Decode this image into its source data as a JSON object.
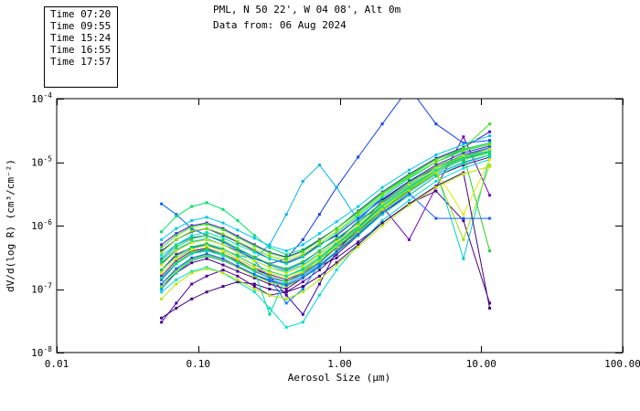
{
  "title": {
    "line1": "PML, N 50 22', W 04 08', Alt 0m",
    "line2": "Data from: 06 Aug 2024"
  },
  "legend": {
    "entries": [
      {
        "label": "Time 07:20",
        "color": "#6A00B8"
      },
      {
        "label": "Time 09:55",
        "color": "#0060FF"
      },
      {
        "label": "Time 15:24",
        "color": "#00DC50"
      },
      {
        "label": "Time 16:55",
        "color": "#6EE000"
      },
      {
        "label": "Time 17:57",
        "color": "#D2E600"
      }
    ]
  },
  "axes": {
    "x": {
      "title": "Aerosol Size (μm)",
      "scale": "log",
      "tick_labels": [
        "0.01",
        "0.10",
        "1.00",
        "10.00",
        "100.00"
      ],
      "tick_values": [
        0.01,
        0.1,
        1,
        10,
        100
      ]
    },
    "y": {
      "title": "dV/d(log R) (cm³/cm⁻²)",
      "scale": "log",
      "tick_base": "10",
      "tick_exponents": [
        "-4",
        "-5",
        "-6",
        "-7",
        "-8"
      ],
      "tick_values": [
        0.0001,
        1e-05,
        1e-06,
        1e-07,
        1e-08
      ]
    }
  },
  "chart_data": {
    "type": "line",
    "title": "PML, N 50 22', W 04 08', Alt 0m",
    "subtitle": "Data from: 06 Aug 2024",
    "xlabel": "Aerosol Size (μm)",
    "ylabel": "dV/d(log R) (cm³/cm⁻²)",
    "xscale": "log",
    "yscale": "log",
    "xlim": [
      0.01,
      100
    ],
    "ylim": [
      1e-08,
      0.0001
    ],
    "grid": false,
    "marker": "square",
    "legend_position": "top-left",
    "legend_times": [
      "07:20",
      "09:55",
      "15:24",
      "16:55",
      "17:57"
    ],
    "x": [
      0.055,
      0.07,
      0.09,
      0.115,
      0.15,
      0.19,
      0.25,
      0.32,
      0.42,
      0.55,
      0.72,
      0.95,
      1.35,
      2.0,
      3.1,
      4.8,
      7.5,
      11.5
    ],
    "series": [
      {
        "name": "line-01",
        "color": "#4B0082",
        "values": [
          1.1e-07,
          1.8e-07,
          2.6e-07,
          3e-07,
          2.4e-07,
          1.9e-07,
          1.5e-07,
          1.2e-07,
          1e-07,
          1.5e-07,
          2.3e-07,
          3.1e-07,
          5.5e-07,
          1.1e-06,
          2.2e-06,
          3.5e-06,
          1.2e-06,
          6e-08
        ]
      },
      {
        "name": "line-02",
        "color": "#52009E",
        "values": [
          3e-08,
          6e-08,
          1.2e-07,
          1.6e-07,
          2e-07,
          1.6e-07,
          1.1e-07,
          8e-08,
          9e-08,
          1.3e-07,
          2e-07,
          3.5e-07,
          7e-07,
          1.6e-06,
          3e-06,
          6e-06,
          9e-06,
          1.2e-05
        ]
      },
      {
        "name": "line-03",
        "color": "#3C00B4",
        "values": [
          2e-07,
          3.5e-07,
          4.5e-07,
          5e-07,
          4e-07,
          3e-07,
          2.2e-07,
          1.6e-07,
          8e-08,
          4e-08,
          1.2e-07,
          4e-07,
          9e-07,
          2.5e-06,
          5e-06,
          8e-06,
          1.3e-05,
          1.6e-05
        ]
      },
      {
        "name": "line-04",
        "color": "#6E00C8",
        "values": [
          1.6e-07,
          2.8e-07,
          4e-07,
          4.4e-07,
          3.6e-07,
          2.8e-07,
          2e-07,
          1.7e-07,
          1.4e-07,
          1.8e-07,
          3e-07,
          5e-07,
          1e-06,
          2e-06,
          6e-07,
          4e-06,
          2.5e-05,
          3e-06
        ]
      },
      {
        "name": "line-05",
        "color": "#2B16C8",
        "values": [
          4e-07,
          6e-07,
          8e-07,
          9e-07,
          7e-07,
          5.5e-07,
          4e-07,
          3e-07,
          2.6e-07,
          3.3e-07,
          5e-07,
          7e-07,
          1.3e-06,
          2.6e-06,
          5e-06,
          9e-06,
          1.4e-05,
          1.8e-05
        ]
      },
      {
        "name": "line-06",
        "color": "#1240EE",
        "values": [
          2.5e-07,
          4e-07,
          5.5e-07,
          6e-07,
          5e-07,
          4e-07,
          3e-07,
          2.5e-07,
          3e-07,
          6e-07,
          1.5e-06,
          4e-06,
          1.2e-05,
          4e-05,
          0.00015,
          4e-05,
          2e-05,
          2.2e-05
        ]
      },
      {
        "name": "line-07",
        "color": "#0055FA",
        "values": [
          1.4e-07,
          2.5e-07,
          3.6e-07,
          4.2e-07,
          3.4e-07,
          2.6e-07,
          1.9e-07,
          1.5e-07,
          1.3e-07,
          1.7e-07,
          2.6e-07,
          4.5e-07,
          8e-07,
          1.8e-06,
          3.6e-06,
          7e-06,
          1.1e-05,
          1.5e-05
        ]
      },
      {
        "name": "line-08",
        "color": "#0066FF",
        "values": [
          2.2e-06,
          1.5e-06,
          9e-07,
          7e-07,
          5.5e-07,
          4.2e-07,
          3.2e-07,
          2.4e-07,
          2e-07,
          2.6e-07,
          4e-07,
          6e-07,
          1.1e-06,
          2.3e-06,
          4.5e-06,
          8e-06,
          1.3e-05,
          1.7e-05
        ]
      },
      {
        "name": "line-09",
        "color": "#0080FF",
        "values": [
          3e-07,
          5e-07,
          6.5e-07,
          7e-07,
          5.6e-07,
          4.2e-07,
          2.8e-07,
          1.5e-07,
          6e-08,
          1e-07,
          2.5e-07,
          5.5e-07,
          1.2e-06,
          2.8e-06,
          5.5e-06,
          1e-05,
          1.6e-05,
          2e-05
        ]
      },
      {
        "name": "line-10",
        "color": "#009CF0",
        "values": [
          1e-07,
          1.8e-07,
          2.8e-07,
          3.3e-07,
          2.8e-07,
          2.2e-07,
          1.7e-07,
          1.4e-07,
          1.2e-07,
          1.6e-07,
          2.4e-07,
          4e-07,
          7.5e-07,
          1.7e-06,
          3.4e-06,
          6.5e-06,
          1e-05,
          1.3e-05
        ]
      },
      {
        "name": "line-11",
        "color": "#00B4E6",
        "values": [
          1.8e-07,
          3e-07,
          4.4e-07,
          5e-07,
          4.2e-07,
          3.4e-07,
          3e-07,
          5e-07,
          1.5e-06,
          5e-06,
          9e-06,
          4e-06,
          1.2e-06,
          2.2e-06,
          4.4e-06,
          8e-06,
          1.2e-05,
          1.6e-05
        ]
      },
      {
        "name": "line-12",
        "color": "#00CCCC",
        "values": [
          2.6e-07,
          4.2e-07,
          5.6e-07,
          6.2e-07,
          5e-07,
          3.8e-07,
          2.8e-07,
          2.2e-07,
          1.9e-07,
          2.4e-07,
          3.6e-07,
          5.6e-07,
          1e-06,
          2.1e-06,
          4.2e-06,
          7.5e-06,
          3e-07,
          1.2e-05
        ]
      },
      {
        "name": "line-13",
        "color": "#00DCD2",
        "values": [
          9e-08,
          1.4e-07,
          1.9e-07,
          2.2e-07,
          1.8e-07,
          1.3e-07,
          9e-08,
          5e-08,
          2.5e-08,
          3e-08,
          8e-08,
          2e-07,
          5e-07,
          1.2e-06,
          2.5e-06,
          5e-06,
          8e-06,
          1.1e-05
        ]
      },
      {
        "name": "line-14",
        "color": "#00E0B4",
        "values": [
          3.4e-07,
          5e-07,
          7e-07,
          7.8e-07,
          6.4e-07,
          5e-07,
          3.8e-07,
          3e-07,
          2.5e-07,
          3.2e-07,
          4.8e-07,
          7.5e-07,
          1.4e-06,
          2.8e-06,
          5.5e-06,
          1e-05,
          1.5e-05,
          1.9e-05
        ]
      },
      {
        "name": "line-15",
        "color": "#00E08C",
        "values": [
          1.2e-07,
          2e-07,
          3e-07,
          3.5e-07,
          3e-07,
          2.3e-07,
          1.7e-07,
          1.3e-07,
          1.1e-07,
          1.5e-07,
          2.2e-07,
          3.8e-07,
          7e-07,
          1.5e-06,
          3e-06,
          6e-06,
          9.5e-06,
          1.3e-05
        ]
      },
      {
        "name": "line-16",
        "color": "#00E064",
        "values": [
          8e-07,
          1.4e-06,
          2e-06,
          2.3e-06,
          1.8e-06,
          1.2e-06,
          7e-07,
          4.5e-07,
          3.5e-07,
          4.2e-07,
          6e-07,
          9e-07,
          1.6e-06,
          3.2e-06,
          6e-06,
          1.1e-05,
          1.6e-05,
          2e-05
        ]
      },
      {
        "name": "line-17",
        "color": "#15D146",
        "values": [
          2e-07,
          3.3e-07,
          4.6e-07,
          5.2e-07,
          4.3e-07,
          3.3e-07,
          2.4e-07,
          1.9e-07,
          1.6e-07,
          2.1e-07,
          3.2e-07,
          5.2e-07,
          9.5e-07,
          2e-06,
          4e-06,
          7.5e-06,
          1.2e-05,
          1.5e-05
        ]
      },
      {
        "name": "line-18",
        "color": "#2ECC2E",
        "values": [
          2.8e-07,
          4.6e-07,
          6.2e-07,
          7e-07,
          5.8e-07,
          4.4e-07,
          3.2e-07,
          2.5e-07,
          2.1e-07,
          2.7e-07,
          4e-07,
          6.3e-07,
          1.1e-06,
          2.4e-06,
          4.8e-06,
          8.5e-06,
          1.3e-05,
          4e-07
        ]
      },
      {
        "name": "line-19",
        "color": "#44D400",
        "values": [
          1.5e-07,
          2.6e-07,
          3.8e-07,
          4.3e-07,
          3.6e-07,
          2.7e-07,
          2e-07,
          1.6e-07,
          1.3e-07,
          1.8e-07,
          2.7e-07,
          4.6e-07,
          8.5e-07,
          1.8e-06,
          3.7e-06,
          7e-06,
          1.1e-05,
          1.4e-05
        ]
      },
      {
        "name": "line-20",
        "color": "#7BDE00",
        "values": [
          3.8e-07,
          6e-07,
          8.2e-07,
          9e-07,
          7.4e-07,
          5.6e-07,
          4.2e-07,
          3.3e-07,
          2.8e-07,
          3.5e-07,
          5.2e-07,
          8e-07,
          1.5e-06,
          3e-06,
          5.8e-06,
          1e-05,
          1.55e-05,
          1.9e-05
        ]
      },
      {
        "name": "line-21",
        "color": "#9CE100",
        "values": [
          1.1e-07,
          1.9e-07,
          2.9e-07,
          3.4e-07,
          2.9e-07,
          2.2e-07,
          1.6e-07,
          1.3e-07,
          1.1e-07,
          1.5e-07,
          2.3e-07,
          4e-07,
          7.8e-07,
          1.7e-06,
          3.5e-06,
          6.8e-06,
          6e-07,
          9e-06
        ]
      },
      {
        "name": "line-22",
        "color": "#C8E600",
        "values": [
          2.4e-07,
          4e-07,
          5.4e-07,
          6e-07,
          5e-07,
          3.8e-07,
          2.8e-07,
          2.2e-07,
          1.8e-07,
          2.3e-07,
          3.5e-07,
          5.6e-07,
          1e-06,
          2.2e-06,
          4.4e-06,
          8e-06,
          1.25e-05,
          1.6e-05
        ]
      },
      {
        "name": "line-23",
        "color": "#E6E600",
        "values": [
          1.8e-07,
          3e-07,
          4.2e-07,
          4.8e-07,
          4e-07,
          3e-07,
          2.2e-07,
          1.8e-07,
          1.5e-07,
          1.9e-07,
          2.9e-07,
          4.8e-07,
          9e-07,
          1.9e-06,
          3.8e-06,
          7.2e-06,
          1.5e-06,
          1.1e-05
        ]
      },
      {
        "name": "line-24",
        "color": "#420080",
        "values": [
          3.5e-08,
          5e-08,
          7e-08,
          9e-08,
          1.1e-07,
          1.3e-07,
          1.2e-07,
          1e-07,
          9e-08,
          1.1e-07,
          1.6e-07,
          2.6e-07,
          5e-07,
          1.1e-06,
          2.2e-06,
          4.2e-06,
          6.8e-06,
          5e-08
        ]
      },
      {
        "name": "line-25",
        "color": "#4714D8",
        "values": [
          5e-07,
          7.5e-07,
          1e-06,
          1.1e-06,
          9e-07,
          6.8e-07,
          5e-07,
          3.8e-07,
          3.2e-07,
          4e-07,
          6e-07,
          9e-07,
          1.7e-06,
          3.4e-06,
          6.5e-06,
          1.15e-05,
          1.7e-05,
          3e-05
        ]
      },
      {
        "name": "line-26",
        "color": "#1E5AFF",
        "values": [
          1.2e-07,
          2.1e-07,
          3.1e-07,
          3.6e-07,
          3e-07,
          2.3e-07,
          1.7e-07,
          1.35e-07,
          1.15e-07,
          1.5e-07,
          2.3e-07,
          3.9e-07,
          7.2e-07,
          1.6e-06,
          3.2e-06,
          1.3e-06,
          1.3e-06,
          1.3e-06
        ]
      },
      {
        "name": "line-27",
        "color": "#00C8F0",
        "values": [
          6e-07,
          9e-07,
          1.2e-06,
          1.35e-06,
          1.1e-06,
          8.5e-07,
          6.3e-07,
          4.8e-07,
          4e-07,
          5e-07,
          7.5e-07,
          1.15e-06,
          2e-06,
          4e-06,
          7.5e-06,
          1.3e-05,
          1.9e-05,
          2.6e-05
        ]
      },
      {
        "name": "line-28",
        "color": "#00DC9C",
        "values": [
          1.5e-07,
          2.5e-07,
          3.6e-07,
          4e-07,
          3.4e-07,
          2.6e-07,
          1.9e-07,
          4e-08,
          1.6e-07,
          2e-07,
          3e-07,
          5e-07,
          9e-07,
          2e-06,
          3.9e-06,
          7.4e-06,
          1.15e-05,
          1.45e-05
        ]
      },
      {
        "name": "line-29",
        "color": "#37E114",
        "values": [
          4.5e-07,
          7e-07,
          9.5e-07,
          1.05e-06,
          8.6e-07,
          6.5e-07,
          4.8e-07,
          3.7e-07,
          3.1e-07,
          3.9e-07,
          5.8e-07,
          9e-07,
          1.65e-06,
          3.3e-06,
          6.3e-06,
          1.1e-05,
          1.65e-05,
          4e-05
        ]
      },
      {
        "name": "line-30",
        "color": "#B4E600",
        "values": [
          7e-08,
          1.2e-07,
          1.8e-07,
          2.1e-07,
          1.8e-07,
          1.4e-07,
          1e-07,
          8e-08,
          7e-08,
          9e-08,
          1.4e-07,
          2.4e-07,
          4.6e-07,
          1e-06,
          2.1e-06,
          4e-06,
          6.5e-06,
          8.5e-06
        ]
      }
    ]
  }
}
